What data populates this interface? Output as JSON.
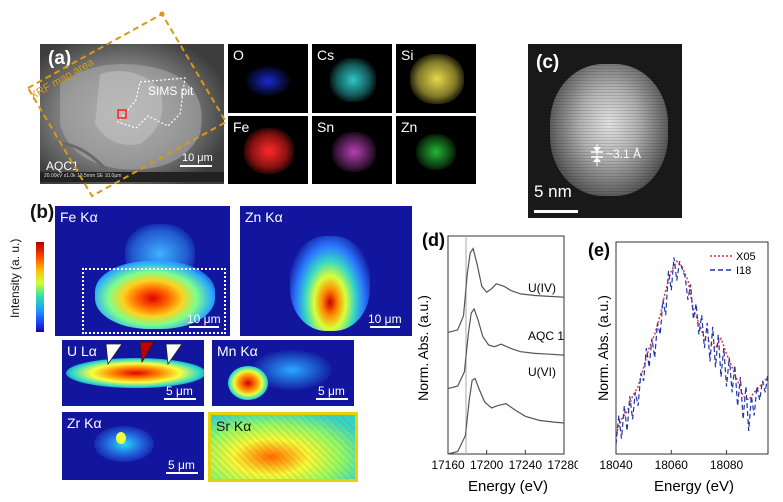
{
  "panels": {
    "a": {
      "letter": "(a)",
      "xrf_label": "XRF map area",
      "sims_label": "SIMS pit",
      "sample_label": "AQC1",
      "scalebar": "10 μm",
      "footer": "20.00kV  x1.0k  13.5mm  SE  10.0μm",
      "elements": [
        {
          "symbol": "O",
          "color": "#1a2ad0"
        },
        {
          "symbol": "Cs",
          "color": "#2cc7c4"
        },
        {
          "symbol": "Si",
          "color": "#e6d84a"
        },
        {
          "symbol": "Fe",
          "color": "#e51d1d"
        },
        {
          "symbol": "Sn",
          "color": "#b63fb4"
        },
        {
          "symbol": "Zn",
          "color": "#25b534"
        }
      ]
    },
    "b": {
      "letter": "(b)",
      "colorbar_label": "Intensity (a. u.)",
      "maps": [
        {
          "label": "Fe Kα",
          "scalebar": "10 μm"
        },
        {
          "label": "Zn Kα",
          "scalebar": "10 μm"
        },
        {
          "label": "U Lα",
          "scalebar": "5 μm"
        },
        {
          "label": "Mn Kα",
          "scalebar": "5 μm"
        },
        {
          "label": "Zr Kα",
          "scalebar": "5 μm"
        },
        {
          "label": "Sr Kα",
          "scalebar": ""
        }
      ]
    },
    "c": {
      "letter": "(c)",
      "spacing": "~3.1 Å",
      "scalebar": "5 nm"
    }
  },
  "chart_data": [
    {
      "type": "line",
      "panel": "(d)",
      "xlabel": "Energy (eV)",
      "ylabel": "Norm. Abs. (a.u.)",
      "xlim": [
        17160,
        17280
      ],
      "xticks": [
        "17160",
        "17200",
        "17240",
        "17280"
      ],
      "xtick_values": [
        17160,
        17200,
        17240,
        17280
      ],
      "series": [
        {
          "name": "U(IV)",
          "x": [
            17160,
            17170,
            17176,
            17180,
            17183,
            17186,
            17190,
            17195,
            17200,
            17205,
            17210,
            17218,
            17225,
            17235,
            17250,
            17265,
            17280
          ],
          "y": [
            0.0,
            0.03,
            0.2,
            0.7,
            0.95,
            1.0,
            0.82,
            0.55,
            0.48,
            0.52,
            0.58,
            0.55,
            0.5,
            0.46,
            0.44,
            0.43,
            0.42
          ]
        },
        {
          "name": "AQC 1",
          "x": [
            17160,
            17170,
            17177,
            17181,
            17184,
            17187,
            17191,
            17196,
            17202,
            17208,
            17215,
            17225,
            17235,
            17250,
            17265,
            17280
          ],
          "y": [
            0.0,
            0.03,
            0.2,
            0.65,
            0.9,
            0.95,
            0.82,
            0.62,
            0.52,
            0.5,
            0.53,
            0.48,
            0.44,
            0.42,
            0.41,
            0.4
          ]
        },
        {
          "name": "U(VI)",
          "x": [
            17160,
            17170,
            17178,
            17182,
            17185,
            17188,
            17192,
            17198,
            17205,
            17212,
            17220,
            17230,
            17240,
            17255,
            17270,
            17280
          ],
          "y": [
            0.0,
            0.03,
            0.22,
            0.65,
            0.88,
            0.9,
            0.78,
            0.62,
            0.55,
            0.58,
            0.6,
            0.52,
            0.45,
            0.4,
            0.38,
            0.37
          ]
        }
      ]
    },
    {
      "type": "line",
      "panel": "(e)",
      "xlabel": "Energy (eV)",
      "ylabel": "Norm. Abs. (a.u.)",
      "xlim": [
        18040,
        18095
      ],
      "xticks": [
        "18040",
        "18060",
        "18080"
      ],
      "xtick_values": [
        18040,
        18060,
        18080
      ],
      "legend": "top-right",
      "series": [
        {
          "name": "X05",
          "color": "#e03131",
          "style": "dotted",
          "x": [
            18040,
            18042,
            18044,
            18046,
            18048,
            18050,
            18052,
            18054,
            18056,
            18058,
            18060,
            18062,
            18064,
            18066,
            18068,
            18070,
            18072,
            18074,
            18076,
            18078,
            18080,
            18082,
            18084,
            18086,
            18088,
            18090,
            18092,
            18095
          ],
          "y": [
            0.1,
            0.18,
            0.22,
            0.3,
            0.35,
            0.45,
            0.55,
            0.62,
            0.72,
            0.85,
            0.95,
            1.0,
            0.97,
            0.9,
            0.75,
            0.68,
            0.6,
            0.58,
            0.55,
            0.6,
            0.52,
            0.45,
            0.38,
            0.3,
            0.28,
            0.32,
            0.35,
            0.4
          ]
        },
        {
          "name": "I18",
          "color": "#2233aa",
          "style": "dashed",
          "x": [
            18040,
            18041,
            18042,
            18043,
            18044,
            18045,
            18046,
            18047,
            18048,
            18049,
            18050,
            18051,
            18052,
            18053,
            18054,
            18055,
            18056,
            18057,
            18058,
            18059,
            18060,
            18061,
            18062,
            18063,
            18064,
            18065,
            18066,
            18067,
            18068,
            18069,
            18070,
            18071,
            18072,
            18073,
            18074,
            18075,
            18076,
            18077,
            18078,
            18079,
            18080,
            18081,
            18082,
            18083,
            18084,
            18085,
            18086,
            18087,
            18088,
            18089,
            18090,
            18091,
            18092,
            18093,
            18094,
            18095
          ],
          "y": [
            0.05,
            0.2,
            0.08,
            0.25,
            0.12,
            0.3,
            0.18,
            0.32,
            0.25,
            0.42,
            0.38,
            0.55,
            0.45,
            0.6,
            0.5,
            0.68,
            0.62,
            0.8,
            0.72,
            0.95,
            0.85,
            1.02,
            0.9,
            1.0,
            0.96,
            0.92,
            0.8,
            0.88,
            0.7,
            0.78,
            0.62,
            0.72,
            0.55,
            0.68,
            0.48,
            0.66,
            0.45,
            0.62,
            0.4,
            0.55,
            0.35,
            0.5,
            0.32,
            0.46,
            0.25,
            0.4,
            0.18,
            0.35,
            0.12,
            0.3,
            0.2,
            0.35,
            0.28,
            0.38,
            0.32,
            0.42
          ]
        }
      ]
    }
  ]
}
